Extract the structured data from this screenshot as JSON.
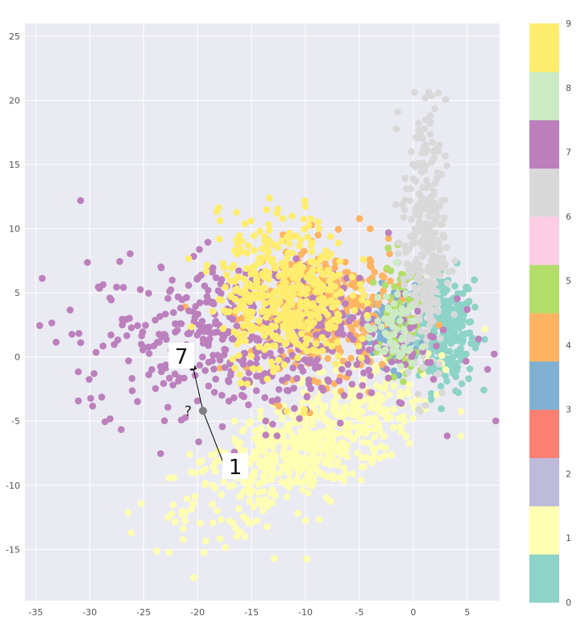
{
  "chart_data": {
    "type": "scatter",
    "title": "",
    "xlabel": "",
    "ylabel": "",
    "xlim": [
      -36,
      8
    ],
    "ylim": [
      -19,
      26
    ],
    "x_ticks": [
      -35,
      -30,
      -25,
      -20,
      -15,
      -10,
      -5,
      0,
      5
    ],
    "y_ticks": [
      -15,
      -10,
      -5,
      0,
      5,
      10,
      15,
      20,
      25
    ],
    "grid": true,
    "colorbar": {
      "ticks": [
        "0",
        "1",
        "2",
        "3",
        "4",
        "5",
        "6",
        "7",
        "8",
        "9"
      ],
      "colors": [
        "#8dd3c7",
        "#ffffb3",
        "#bebada",
        "#fb8072",
        "#80b1d3",
        "#fdb462",
        "#b3de69",
        "#fccde5",
        "#d9d9d9",
        "#bc80bd",
        "#ccebc5",
        "#ffed6f"
      ]
    },
    "clusters": [
      {
        "label": "0",
        "color": "#8dd3c7",
        "cx": 3,
        "cy": 2,
        "sx": 1.3,
        "sy": 2.3,
        "n": 260
      },
      {
        "label": "1",
        "color": "#ffffb3",
        "cx": -10,
        "cy": -7,
        "sx": 6,
        "sy": 2,
        "angle": 0.42,
        "n": 620
      },
      {
        "label": "3",
        "color": "#80b1d3",
        "cx": -2,
        "cy": 2.5,
        "sx": 1.3,
        "sy": 1.5,
        "n": 110
      },
      {
        "label": "4",
        "color": "#fdb462",
        "cx": -8,
        "cy": 3.5,
        "sx": 3.5,
        "sy": 2.5,
        "n": 380
      },
      {
        "label": "5",
        "color": "#b3de69",
        "cx": -1,
        "cy": 3,
        "sx": 0.9,
        "sy": 2.2,
        "n": 80
      },
      {
        "label": "6",
        "color": "#d9d9d9",
        "cx": 1,
        "cy": 9,
        "sx": 1,
        "sy": 5.5,
        "n": 300
      },
      {
        "label": "7",
        "color": "#bc80bd",
        "cx": -15,
        "cy": 1.5,
        "sx": 8,
        "sy": 3,
        "n": 520
      },
      {
        "label": "8",
        "color": "#ccebc5",
        "cx": -2,
        "cy": 2,
        "sx": 1.2,
        "sy": 1.5,
        "n": 60
      },
      {
        "label": "9",
        "color": "#ffed6f",
        "cx": -12,
        "cy": 5,
        "sx": 3,
        "sy": 3,
        "n": 440
      }
    ],
    "annotations": {
      "arrow_start": {
        "x": -19.5,
        "y": -4.2
      },
      "arrow_end": {
        "x": -20.5,
        "y": -0.5
      },
      "arrow_tail_line": {
        "x": -17.5,
        "y": -8.5
      },
      "query_point": {
        "x": -19.5,
        "y": -4.2,
        "label": "?",
        "color": "#808080"
      },
      "digit_seven": {
        "x": -21.5,
        "y": 0.1,
        "label": "7"
      },
      "digit_one": {
        "x": -16.5,
        "y": -8.5,
        "label": "1"
      }
    }
  }
}
